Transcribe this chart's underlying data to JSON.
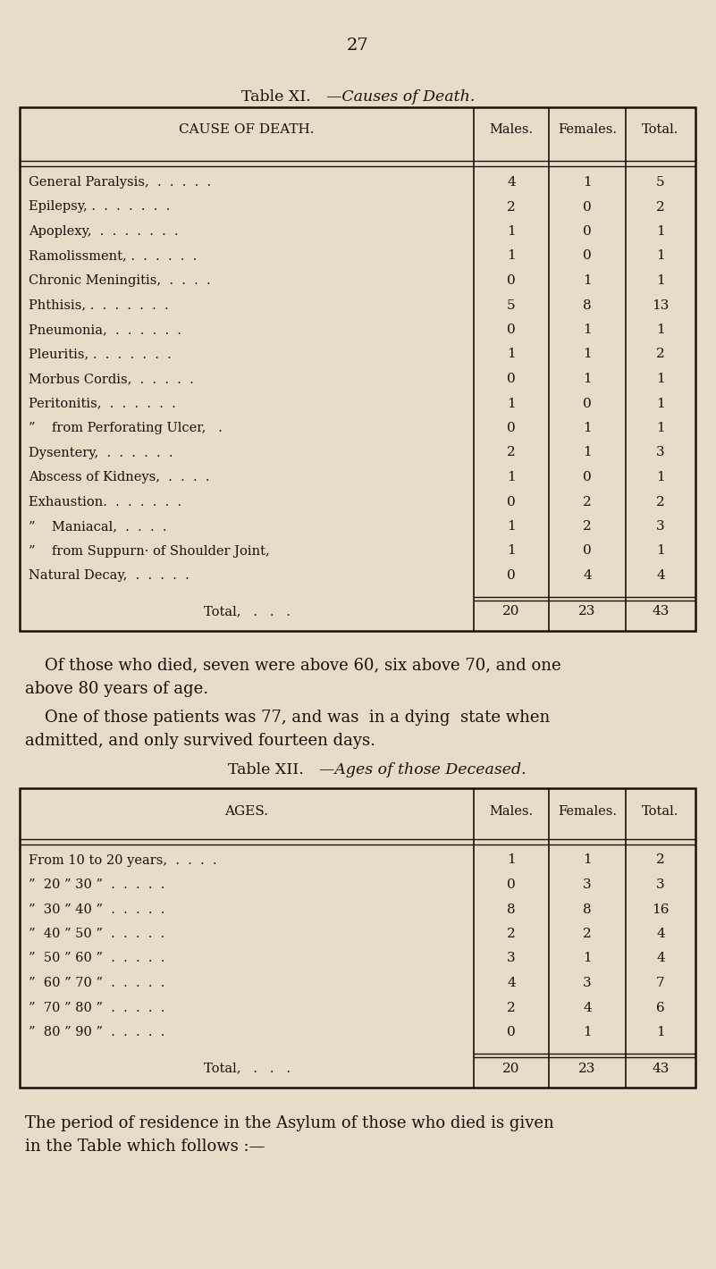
{
  "page_number": "27",
  "bg_color": "#e6dcc8",
  "text_color": "#1a1008",
  "table1_title_roman": "Table XI.",
  "table1_title_italic": "—Causes of Death.",
  "table1_headers": [
    "CAUSE OF DEATH.",
    "Males.",
    "Females.",
    "Total."
  ],
  "table1_rows": [
    [
      "General Paralysis,  .  .  .  .  .",
      "4",
      "1",
      "5"
    ],
    [
      "Epilepsy, .  .  .  .  .  .  .",
      "2",
      "0",
      "2"
    ],
    [
      "Apoplexy,  .  .  .  .  .  .  .",
      "1",
      "0",
      "1"
    ],
    [
      "Ramolissment, .  .  .  .  .  .",
      "1",
      "0",
      "1"
    ],
    [
      "Chronic Meningitis,  .  .  .  .",
      "0",
      "1",
      "1"
    ],
    [
      "Phthisis, .  .  .  .  .  .  .",
      "5",
      "8",
      "13"
    ],
    [
      "Pneumonia,  .  .  .  .  .  .",
      "0",
      "1",
      "1"
    ],
    [
      "Pleuritis, .  .  .  .  .  .  .",
      "1",
      "1",
      "2"
    ],
    [
      "Morbus Cordis,  .  .  .  .  .",
      "0",
      "1",
      "1"
    ],
    [
      "Peritonitis,  .  .  .  .  .  .",
      "1",
      "0",
      "1"
    ],
    [
      "”    from Perforating Ulcer,   .",
      "0",
      "1",
      "1"
    ],
    [
      "Dysentery,  .  .  .  .  .  .",
      "2",
      "1",
      "3"
    ],
    [
      "Abscess of Kidneys,  .  .  .  .",
      "1",
      "0",
      "1"
    ],
    [
      "Exhaustion.  .  .  .  .  .  .",
      "0",
      "2",
      "2"
    ],
    [
      "”    Maniacal,  .  .  .  .",
      "1",
      "2",
      "3"
    ],
    [
      "”    from Suppurn· of Shoulder Joint,",
      "1",
      "0",
      "1"
    ],
    [
      "Natural Decay,  .  .  .  .  .",
      "0",
      "4",
      "4"
    ]
  ],
  "table1_total_label": "Total,   .   .   .",
  "table1_total": [
    "20",
    "23",
    "43"
  ],
  "para1_line1": "Of those who died, seven were above 60, six above 70, and one",
  "para1_line2": "above 80 years of age.",
  "para2_line1": "One of those patients was 77, and was  in a dying  state when",
  "para2_line2": "admitted, and only survived fourteen days.",
  "table2_title_roman": "Table XII.",
  "table2_title_italic": "—Ages of those Deceased.",
  "table2_headers": [
    "AGES.",
    "Males.",
    "Females.",
    "Total."
  ],
  "table2_rows": [
    [
      "From 10 to 20 years,  .  .  .  .",
      "1",
      "1",
      "2"
    ],
    [
      "”  20 ” 30 ”  .  .  .  .  .",
      "0",
      "3",
      "3"
    ],
    [
      "”  30 ” 40 ”  .  .  .  .  .",
      "8",
      "8",
      "16"
    ],
    [
      "”  40 ” 50 ”  .  .  .  .  .",
      "2",
      "2",
      "4"
    ],
    [
      "”  50 ” 60 ”  .  .  .  .  .",
      "3",
      "1",
      "4"
    ],
    [
      "”  60 ” 70 ”  .  .  .  .  .",
      "4",
      "3",
      "7"
    ],
    [
      "”  70 ” 80 ”  .  .  .  .  .",
      "2",
      "4",
      "6"
    ],
    [
      "”  80 ” 90 ”  .  .  .  .  .",
      "0",
      "1",
      "1"
    ]
  ],
  "table2_total_label": "Total,   .   .   .",
  "table2_total": [
    "20",
    "23",
    "43"
  ],
  "para3_line1": "The period of residence in the Asylum of those who died is given",
  "para3_line2": "in the Table which follows :—"
}
